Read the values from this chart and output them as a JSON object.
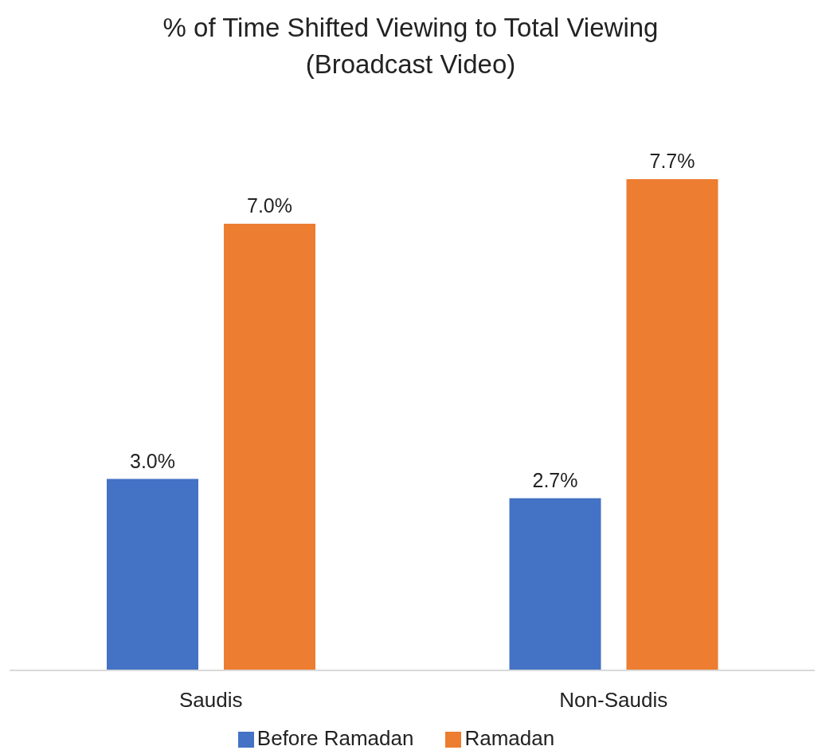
{
  "chart_data": {
    "type": "bar",
    "title": "% of Time Shifted Viewing to Total Viewing\n(Broadcast Video)",
    "categories": [
      "Saudis",
      "Non-Saudis"
    ],
    "series": [
      {
        "name": "Before Ramadan",
        "color": "#4472c4",
        "values": [
          3.0,
          2.7
        ],
        "value_labels": [
          "3.0%",
          "2.7%"
        ]
      },
      {
        "name": "Ramadan",
        "color": "#ed7d31",
        "values": [
          7.0,
          7.7
        ],
        "value_labels": [
          "7.0%",
          "7.7%"
        ]
      }
    ],
    "legend": "bottom",
    "grid": false
  }
}
